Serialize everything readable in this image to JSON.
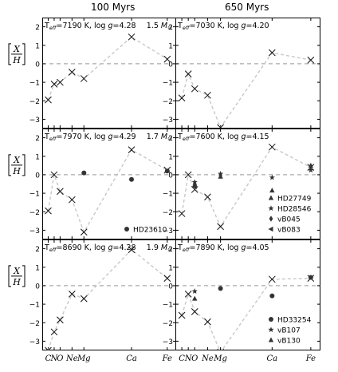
{
  "columns": [
    "100 Myrs",
    "650 Myrs"
  ],
  "ylabel": {
    "num": "X",
    "den": "H"
  },
  "chart_data": {
    "type": "scatter",
    "y_ticks": [
      2,
      1,
      0,
      -1,
      -2,
      -3
    ],
    "ylim": [
      -3.5,
      2.5
    ],
    "x_elements": [
      "C",
      "N",
      "O",
      "Ne",
      "Mg",
      "Ca",
      "Fe"
    ],
    "x_positions": [
      6,
      7,
      8,
      10,
      12,
      20,
      26
    ],
    "x_tick_labels": [
      {
        "label": "C",
        "x": 6
      },
      {
        "label": "N",
        "x": 7
      },
      {
        "label": "O",
        "x": 8
      },
      {
        "label": "Ne",
        "x": 10
      },
      {
        "label": "Mg",
        "x": 12
      },
      {
        "label": "Ca",
        "x": 20
      },
      {
        "label": "Fe",
        "x": 26
      }
    ],
    "xlim": [
      5,
      27.5
    ],
    "panels": [
      {
        "col": 0,
        "row": 0,
        "label": "T$_{eff}$=7190 K, log $g$=4.28",
        "label_parts": {
          "teff": "7190 K",
          "logg": "4.28"
        },
        "mass": "1.5",
        "model": [
          {
            "el": "C",
            "x": 6,
            "y": -1.95
          },
          {
            "el": "N",
            "x": 7,
            "y": -1.1
          },
          {
            "el": "O",
            "x": 8,
            "y": -1.0
          },
          {
            "el": "Ne",
            "x": 10,
            "y": -0.45
          },
          {
            "el": "Mg",
            "x": 12,
            "y": -0.8
          },
          {
            "el": "Ca",
            "x": 20,
            "y": 1.45
          },
          {
            "el": "Fe",
            "x": 26,
            "y": 0.25
          }
        ],
        "observed": []
      },
      {
        "col": 1,
        "row": 0,
        "label": "T$_{eff}$=7030 K, log $g$=4.20",
        "label_parts": {
          "teff": "7030 K",
          "logg": "4.20"
        },
        "mass": "",
        "model": [
          {
            "el": "C",
            "x": 6,
            "y": -1.85
          },
          {
            "el": "N",
            "x": 7,
            "y": -0.55
          },
          {
            "el": "O",
            "x": 8,
            "y": -1.35
          },
          {
            "el": "Ne",
            "x": 10,
            "y": -1.7
          },
          {
            "el": "Mg",
            "x": 12,
            "y": -3.45
          },
          {
            "el": "Ca",
            "x": 20,
            "y": 0.6
          },
          {
            "el": "Fe",
            "x": 26,
            "y": 0.2
          }
        ],
        "observed": []
      },
      {
        "col": 0,
        "row": 1,
        "label": "T$_{eff}$=7970 K, log $g$=4.29",
        "label_parts": {
          "teff": "7970 K",
          "logg": "4.29"
        },
        "mass": "1.7",
        "model": [
          {
            "el": "C",
            "x": 6,
            "y": -1.95
          },
          {
            "el": "N",
            "x": 7,
            "y": 0.0
          },
          {
            "el": "O",
            "x": 8,
            "y": -0.9
          },
          {
            "el": "Ne",
            "x": 10,
            "y": -1.35
          },
          {
            "el": "Mg",
            "x": 12,
            "y": -3.1
          },
          {
            "el": "Ca",
            "x": 20,
            "y": 1.35
          },
          {
            "el": "Fe",
            "x": 26,
            "y": 0.25
          }
        ],
        "observed": [
          {
            "name": "HD23610",
            "marker": "circle",
            "points": [
              {
                "el": "Mg",
                "x": 12,
                "y": 0.1
              },
              {
                "el": "Ca",
                "x": 20,
                "y": -0.25
              },
              {
                "el": "Fe",
                "x": 26,
                "y": 0.2
              }
            ]
          }
        ]
      },
      {
        "col": 1,
        "row": 1,
        "label": "T$_{eff}$=7600 K, log $g$=4.15",
        "label_parts": {
          "teff": "7600 K",
          "logg": "4.15"
        },
        "mass": "",
        "model": [
          {
            "el": "C",
            "x": 6,
            "y": -2.1
          },
          {
            "el": "N",
            "x": 7,
            "y": 0.0
          },
          {
            "el": "O",
            "x": 8,
            "y": -0.8
          },
          {
            "el": "Ne",
            "x": 10,
            "y": -1.2
          },
          {
            "el": "Mg",
            "x": 12,
            "y": -2.8
          },
          {
            "el": "Ca",
            "x": 20,
            "y": 1.5
          },
          {
            "el": "Fe",
            "x": 26,
            "y": 0.4
          }
        ],
        "observed": [
          {
            "name": "HD27749",
            "marker": "triangle-up",
            "points": [
              {
                "el": "O",
                "x": 8,
                "y": -0.55
              },
              {
                "el": "Mg",
                "x": 12,
                "y": -0.1
              },
              {
                "el": "Ca",
                "x": 20,
                "y": -0.85
              },
              {
                "el": "Fe",
                "x": 26,
                "y": 0.5
              }
            ]
          },
          {
            "name": "HD28546",
            "marker": "star",
            "points": [
              {
                "el": "O",
                "x": 8,
                "y": -0.4
              },
              {
                "el": "Mg",
                "x": 12,
                "y": 0.05
              },
              {
                "el": "Ca",
                "x": 20,
                "y": -0.15
              },
              {
                "el": "Fe",
                "x": 26,
                "y": 0.25
              }
            ]
          },
          {
            "name": "vB045",
            "marker": "diamond",
            "points": [
              {
                "el": "O",
                "x": 8,
                "y": -0.5
              }
            ]
          },
          {
            "name": "vB083",
            "marker": "triangle-left",
            "points": [
              {
                "el": "O",
                "x": 8,
                "y": -0.65
              }
            ]
          }
        ]
      },
      {
        "col": 0,
        "row": 2,
        "label": "T$_{eff}$=8690 K, log $g$=4.28",
        "label_parts": {
          "teff": "8690 K",
          "logg": "4.28"
        },
        "mass": "1.9",
        "model": [
          {
            "el": "C",
            "x": 6,
            "y": -3.5
          },
          {
            "el": "N",
            "x": 7,
            "y": -2.5
          },
          {
            "el": "O",
            "x": 8,
            "y": -1.85
          },
          {
            "el": "Ne",
            "x": 10,
            "y": -0.45
          },
          {
            "el": "Mg",
            "x": 12,
            "y": -0.7
          },
          {
            "el": "Ca",
            "x": 20,
            "y": 1.95
          },
          {
            "el": "Fe",
            "x": 26,
            "y": 0.4
          }
        ],
        "observed": []
      },
      {
        "col": 1,
        "row": 2,
        "label": "T$_{eff}$=7890 K, log $g$=4.05",
        "label_parts": {
          "teff": "7890 K",
          "logg": "4.05"
        },
        "mass": "",
        "model": [
          {
            "el": "C",
            "x": 6,
            "y": -1.6
          },
          {
            "el": "N",
            "x": 7,
            "y": -0.45
          },
          {
            "el": "O",
            "x": 8,
            "y": -1.4
          },
          {
            "el": "Ne",
            "x": 10,
            "y": -1.95
          },
          {
            "el": "Mg",
            "x": 12,
            "y": -3.6
          },
          {
            "el": "Ca",
            "x": 20,
            "y": 0.35
          },
          {
            "el": "Fe",
            "x": 26,
            "y": 0.4
          }
        ],
        "observed": [
          {
            "name": "HD33254",
            "marker": "circle",
            "points": [
              {
                "el": "Mg",
                "x": 12,
                "y": -0.15
              },
              {
                "el": "Ca",
                "x": 20,
                "y": -0.55
              },
              {
                "el": "Fe",
                "x": 26,
                "y": 0.45
              }
            ]
          },
          {
            "name": "vB107",
            "marker": "star",
            "points": [
              {
                "el": "O",
                "x": 8,
                "y": -0.3
              }
            ]
          },
          {
            "name": "vB130",
            "marker": "triangle-up",
            "points": [
              {
                "el": "O",
                "x": 8,
                "y": -0.7
              }
            ]
          }
        ]
      }
    ]
  }
}
